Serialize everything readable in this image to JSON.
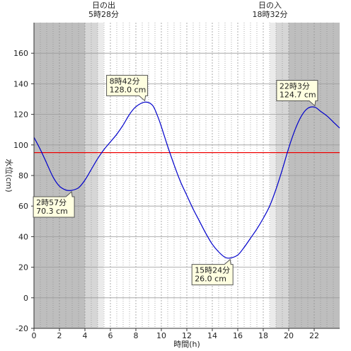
{
  "chart_data": {
    "type": "line",
    "title": "",
    "xlabel": "時間(h)",
    "ylabel": "水位(cm)",
    "xlim": [
      0,
      24
    ],
    "ylim": [
      -20,
      180
    ],
    "x_ticks": [
      0,
      2,
      4,
      6,
      8,
      10,
      12,
      14,
      16,
      18,
      20,
      22
    ],
    "y_ticks": [
      -20,
      0,
      20,
      40,
      60,
      80,
      100,
      120,
      140,
      160
    ],
    "grid": true,
    "series": [
      {
        "color": "#0000cc",
        "x": [
          0,
          0.5,
          1,
          1.5,
          2,
          2.5,
          2.95,
          3.5,
          4,
          4.5,
          5,
          5.5,
          6,
          6.5,
          7,
          7.5,
          8,
          8.7,
          9.3,
          9.7,
          10,
          10.5,
          11,
          11.5,
          12,
          12.5,
          13,
          13.5,
          14,
          14.5,
          15,
          15.4,
          16,
          16.5,
          17,
          17.5,
          18,
          18.5,
          19,
          19.5,
          20,
          20.5,
          21,
          21.5,
          22.05,
          22.5,
          23,
          23.5,
          24
        ],
        "y": [
          105,
          97,
          88,
          79,
          73,
          70.5,
          70.3,
          72,
          77,
          84,
          91,
          97,
          102,
          107,
          113,
          120,
          125,
          128,
          126,
          119,
          112,
          99,
          87,
          76,
          67,
          58,
          50,
          42,
          35,
          30,
          26.5,
          26,
          28,
          33,
          39,
          45,
          52,
          60,
          71,
          84,
          98,
          110,
          119,
          124,
          124.7,
          122,
          119,
          115,
          111
        ]
      }
    ],
    "reference_line": {
      "y": 95,
      "color": "#ee0000"
    },
    "shading": {
      "night_color": "#bebebe",
      "twilight_color": "#d6d6d6",
      "dawn_color": "#ebebeb",
      "bands": [
        {
          "from": 0,
          "to": 4.0,
          "kind": "night"
        },
        {
          "from": 4.0,
          "to": 5.0,
          "kind": "twilight"
        },
        {
          "from": 5.0,
          "to": 5.47,
          "kind": "dawn"
        },
        {
          "from": 18.53,
          "to": 19.0,
          "kind": "dawn"
        },
        {
          "from": 19.0,
          "to": 20.0,
          "kind": "twilight"
        },
        {
          "from": 20.0,
          "to": 24,
          "kind": "night"
        }
      ]
    },
    "sun_events": [
      {
        "x": 5.47,
        "label": "日の出",
        "time": "5時28分"
      },
      {
        "x": 18.53,
        "label": "日の入",
        "time": "18時32分"
      }
    ],
    "annotations": [
      {
        "x": 2.95,
        "y": 70.3,
        "time": "2時57分",
        "value": "70.3 cm",
        "placement": "below-left"
      },
      {
        "x": 8.7,
        "y": 128.0,
        "time": "8時42分",
        "value": "128.0 cm",
        "placement": "above-left"
      },
      {
        "x": 15.4,
        "y": 26.0,
        "time": "15時24分",
        "value": "26.0 cm",
        "placement": "below-left"
      },
      {
        "x": 22.05,
        "y": 124.7,
        "time": "22時3分",
        "value": "124.7 cm",
        "placement": "above-left"
      }
    ]
  }
}
